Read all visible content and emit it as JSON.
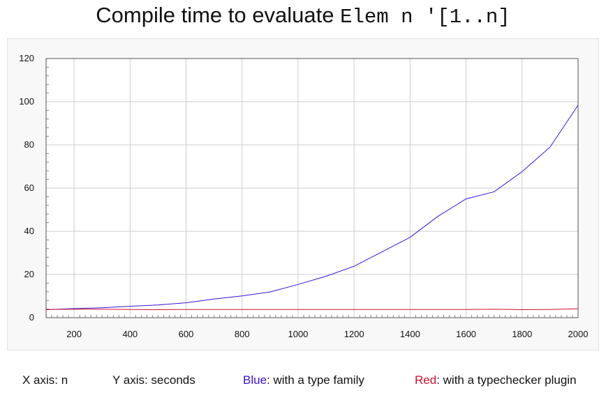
{
  "title": {
    "prefix": "Compile time to evaluate ",
    "code": "Elem n '[1..n]"
  },
  "chart_data": {
    "type": "line",
    "title": "Compile time to evaluate Elem n '[1..n]",
    "xlim": [
      100,
      2000
    ],
    "ylim": [
      0,
      120
    ],
    "x_ticks": [
      200,
      400,
      600,
      800,
      1000,
      1200,
      1400,
      1600,
      1800,
      2000
    ],
    "y_ticks": [
      0,
      20,
      40,
      60,
      80,
      100,
      120
    ],
    "grid": true,
    "series": [
      {
        "color": "#3a10d8",
        "x": [
          100,
          200,
          300,
          400,
          500,
          600,
          700,
          800,
          900,
          1000,
          1100,
          1200,
          1300,
          1400,
          1500,
          1600,
          1700,
          1800,
          1900,
          2000
        ],
        "values": [
          3.7,
          4.2,
          4.6,
          5.3,
          5.9,
          6.9,
          8.6,
          10.1,
          11.9,
          15.4,
          19.2,
          23.8,
          30.5,
          37.2,
          47.0,
          55.0,
          58.3,
          67.6,
          79.0,
          98.4
        ]
      },
      {
        "color": "#d01030",
        "x": [
          100,
          200,
          300,
          400,
          500,
          600,
          700,
          800,
          900,
          1000,
          1100,
          1200,
          1300,
          1400,
          1500,
          1600,
          1700,
          1800,
          1900,
          2000
        ],
        "values": [
          3.8,
          3.9,
          3.9,
          3.8,
          3.7,
          3.8,
          3.8,
          3.8,
          3.8,
          3.8,
          3.8,
          3.8,
          3.8,
          3.8,
          3.8,
          3.8,
          3.9,
          3.7,
          3.8,
          4.1
        ]
      }
    ]
  },
  "footer": {
    "x_axis": "X axis: n",
    "y_axis": "Y axis: seconds",
    "blue_word": "Blue",
    "blue_rest": ": with a type family",
    "red_word": "Red",
    "red_rest": ": with a typechecker plugin"
  }
}
